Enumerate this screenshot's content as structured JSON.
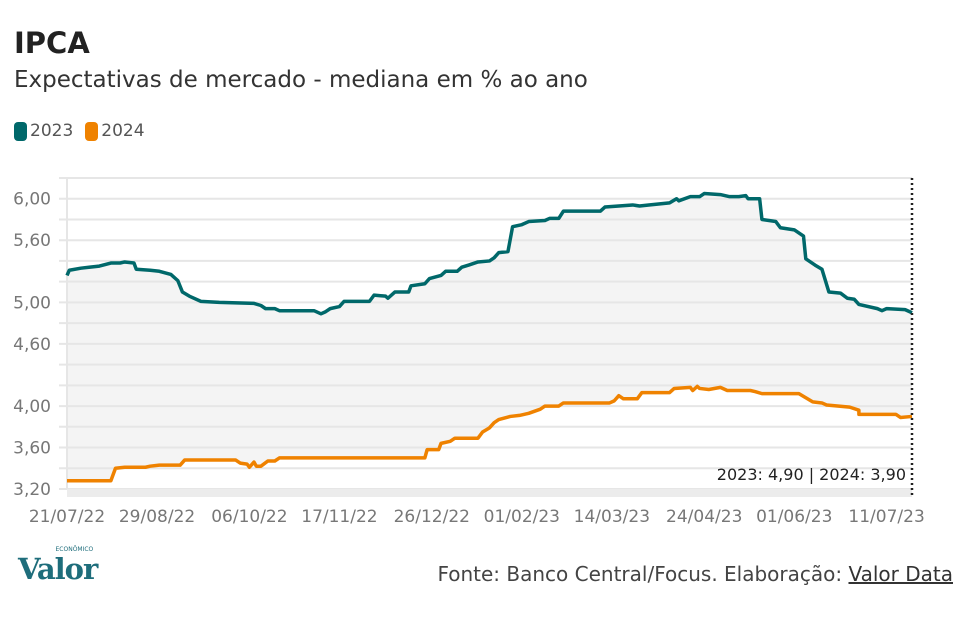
{
  "title": "IPCA",
  "subtitle": "Expectativas de mercado - mediana em % ao ano",
  "colors": {
    "s2023": "#00686a",
    "s2024": "#ef8200",
    "fill": "#f4f4f4",
    "grid": "#e6e6e6"
  },
  "chart_data": {
    "type": "line",
    "title": "IPCA",
    "xlabel": "",
    "ylabel": "% ao ano",
    "x_unit": "days since 21/07/22",
    "xlim": [
      0,
      366
    ],
    "ylim": [
      3.2,
      6.2
    ],
    "grid_step": 0.2,
    "yticks": [
      {
        "v": 6.0,
        "label": "6,00"
      },
      {
        "v": 5.6,
        "label": "5,60"
      },
      {
        "v": 5.0,
        "label": "5,00"
      },
      {
        "v": 4.6,
        "label": "4,60"
      },
      {
        "v": 4.0,
        "label": "4,00"
      },
      {
        "v": 3.6,
        "label": "3,60"
      },
      {
        "v": 3.2,
        "label": "3,20"
      }
    ],
    "xticks": [
      {
        "v": 0,
        "label": "21/07/22"
      },
      {
        "v": 39,
        "label": "29/08/22"
      },
      {
        "v": 79,
        "label": "06/10/22"
      },
      {
        "v": 118,
        "label": "17/11/22"
      },
      {
        "v": 158,
        "label": "26/12/22"
      },
      {
        "v": 197,
        "label": "01/02/23"
      },
      {
        "v": 236,
        "label": "14/03/23"
      },
      {
        "v": 276,
        "label": "24/04/23"
      },
      {
        "v": 315,
        "label": "01/06/23"
      },
      {
        "v": 355,
        "label": "11/07/23"
      }
    ],
    "legend": "top-left",
    "annotation": "2023: 4,90 | 2024: 3,90",
    "series": [
      {
        "name": "2023",
        "points": [
          [
            0,
            5.26
          ],
          [
            1,
            5.31
          ],
          [
            6,
            5.33
          ],
          [
            10,
            5.34
          ],
          [
            14,
            5.35
          ],
          [
            19,
            5.38
          ],
          [
            23,
            5.38
          ],
          [
            25,
            5.39
          ],
          [
            29,
            5.38
          ],
          [
            30,
            5.32
          ],
          [
            36,
            5.31
          ],
          [
            40,
            5.3
          ],
          [
            45,
            5.27
          ],
          [
            48,
            5.21
          ],
          [
            50,
            5.1
          ],
          [
            53,
            5.06
          ],
          [
            58,
            5.01
          ],
          [
            66,
            5.0
          ],
          [
            81,
            4.99
          ],
          [
            84,
            4.97
          ],
          [
            86,
            4.94
          ],
          [
            90,
            4.94
          ],
          [
            92,
            4.92
          ],
          [
            107,
            4.92
          ],
          [
            110,
            4.89
          ],
          [
            112,
            4.91
          ],
          [
            114,
            4.94
          ],
          [
            118,
            4.96
          ],
          [
            120,
            5.01
          ],
          [
            131,
            5.01
          ],
          [
            133,
            5.07
          ],
          [
            138,
            5.06
          ],
          [
            139,
            5.04
          ],
          [
            142,
            5.1
          ],
          [
            148,
            5.1
          ],
          [
            149,
            5.16
          ],
          [
            155,
            5.18
          ],
          [
            157,
            5.23
          ],
          [
            162,
            5.26
          ],
          [
            164,
            5.3
          ],
          [
            169,
            5.3
          ],
          [
            171,
            5.34
          ],
          [
            174,
            5.36
          ],
          [
            178,
            5.39
          ],
          [
            183,
            5.4
          ],
          [
            185,
            5.43
          ],
          [
            187,
            5.48
          ],
          [
            191,
            5.49
          ],
          [
            193,
            5.73
          ],
          [
            197,
            5.75
          ],
          [
            200,
            5.78
          ],
          [
            207,
            5.79
          ],
          [
            209,
            5.81
          ],
          [
            213,
            5.81
          ],
          [
            215,
            5.88
          ],
          [
            231,
            5.88
          ],
          [
            233,
            5.92
          ],
          [
            245,
            5.94
          ],
          [
            248,
            5.93
          ],
          [
            252,
            5.94
          ],
          [
            261,
            5.96
          ],
          [
            264,
            6.0
          ],
          [
            265,
            5.98
          ],
          [
            270,
            6.02
          ],
          [
            274,
            6.02
          ],
          [
            276,
            6.05
          ],
          [
            283,
            6.04
          ],
          [
            287,
            6.02
          ],
          [
            291,
            6.02
          ],
          [
            294,
            6.03
          ],
          [
            295,
            6.0
          ],
          [
            300,
            6.0
          ],
          [
            301,
            5.8
          ],
          [
            307,
            5.78
          ],
          [
            309,
            5.72
          ],
          [
            315,
            5.7
          ],
          [
            319,
            5.64
          ],
          [
            320,
            5.42
          ],
          [
            324,
            5.36
          ],
          [
            327,
            5.32
          ],
          [
            330,
            5.1
          ],
          [
            335,
            5.09
          ],
          [
            338,
            5.04
          ],
          [
            341,
            5.03
          ],
          [
            343,
            4.98
          ],
          [
            351,
            4.94
          ],
          [
            353,
            4.92
          ],
          [
            355,
            4.94
          ],
          [
            363,
            4.93
          ],
          [
            366,
            4.9
          ]
        ]
      },
      {
        "name": "2024",
        "points": [
          [
            0,
            3.28
          ],
          [
            19,
            3.28
          ],
          [
            21,
            3.4
          ],
          [
            25,
            3.41
          ],
          [
            34,
            3.41
          ],
          [
            36,
            3.42
          ],
          [
            40,
            3.43
          ],
          [
            49,
            3.43
          ],
          [
            51,
            3.48
          ],
          [
            73,
            3.48
          ],
          [
            75,
            3.45
          ],
          [
            78,
            3.44
          ],
          [
            79,
            3.41
          ],
          [
            81,
            3.46
          ],
          [
            82,
            3.42
          ],
          [
            84,
            3.42
          ],
          [
            87,
            3.47
          ],
          [
            90,
            3.47
          ],
          [
            92,
            3.5
          ],
          [
            155,
            3.5
          ],
          [
            156,
            3.58
          ],
          [
            161,
            3.58
          ],
          [
            162,
            3.64
          ],
          [
            166,
            3.66
          ],
          [
            168,
            3.69
          ],
          [
            178,
            3.69
          ],
          [
            180,
            3.75
          ],
          [
            183,
            3.79
          ],
          [
            185,
            3.84
          ],
          [
            187,
            3.87
          ],
          [
            192,
            3.9
          ],
          [
            196,
            3.91
          ],
          [
            200,
            3.93
          ],
          [
            205,
            3.97
          ],
          [
            207,
            4.0
          ],
          [
            213,
            4.0
          ],
          [
            215,
            4.03
          ],
          [
            235,
            4.03
          ],
          [
            237,
            4.05
          ],
          [
            239,
            4.1
          ],
          [
            241,
            4.07
          ],
          [
            247,
            4.07
          ],
          [
            249,
            4.13
          ],
          [
            261,
            4.13
          ],
          [
            263,
            4.17
          ],
          [
            270,
            4.18
          ],
          [
            271,
            4.15
          ],
          [
            273,
            4.19
          ],
          [
            274,
            4.17
          ],
          [
            278,
            4.16
          ],
          [
            283,
            4.18
          ],
          [
            286,
            4.15
          ],
          [
            296,
            4.15
          ],
          [
            298,
            4.14
          ],
          [
            301,
            4.12
          ],
          [
            317,
            4.12
          ],
          [
            320,
            4.08
          ],
          [
            323,
            4.04
          ],
          [
            327,
            4.03
          ],
          [
            329,
            4.01
          ],
          [
            339,
            3.99
          ],
          [
            343,
            3.96
          ],
          [
            343,
            3.92
          ],
          [
            359,
            3.92
          ],
          [
            361,
            3.89
          ],
          [
            366,
            3.9
          ]
        ]
      }
    ]
  },
  "legend": [
    {
      "label": "2023"
    },
    {
      "label": "2024"
    }
  ],
  "footer": {
    "logo": "Valor",
    "logo_small": "ECONÔMICO",
    "source_prefix": "Fonte: Banco Central/Focus. Elaboração: ",
    "source_link": "Valor Data"
  }
}
